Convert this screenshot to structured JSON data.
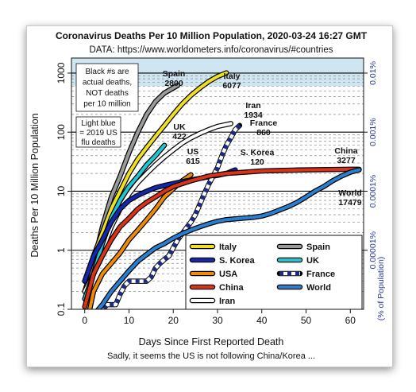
{
  "chart_data": {
    "type": "line",
    "title": "Coronavirus Deaths Per 10 Million Population, 2020-03-24 16:27 GMT",
    "subtitle": "DATA: https://www.worldometers.info/coronavirus/#countries",
    "xlabel": "Days Since First Reported Death",
    "ylabel": "Deaths Per 10 Million Population",
    "right_axis_label": "(% of Population)",
    "caption": "Sadly, it seems the US is not following China/Korea ...",
    "xlim": [
      -3,
      63
    ],
    "ylim": [
      0.1,
      1800
    ],
    "y_scale": "log",
    "x_ticks": [
      "0",
      "10",
      "20",
      "30",
      "40",
      "50",
      "60"
    ],
    "y_ticks": [
      "0.1",
      "1",
      "10",
      "100",
      "1000"
    ],
    "right_ticks": [
      {
        "label": "0.00001%",
        "value": 1
      },
      {
        "label": "0.0001%",
        "value": 10
      },
      {
        "label": "0.001%",
        "value": 100
      },
      {
        "label": "0.01%",
        "value": 1000
      }
    ],
    "flu_band": {
      "y_low": 600,
      "y_high": 1800,
      "color": "#cfe6f2"
    },
    "notes": [
      "Black #s are",
      "actual deaths,",
      "NOT deaths",
      "per 10 million"
    ],
    "flu_note": [
      "Light blue",
      "= 2019 US",
      "flu deaths"
    ],
    "legend_position": "bottom-right",
    "series": [
      {
        "name": "Spain",
        "color": "#9a9a9a",
        "style": "solid",
        "end_label": "Spain",
        "deaths_label": "2800",
        "points": [
          [
            0,
            0.2
          ],
          [
            2,
            0.6
          ],
          [
            4,
            2.5
          ],
          [
            6,
            8
          ],
          [
            8,
            18
          ],
          [
            10,
            45
          ],
          [
            12,
            100
          ],
          [
            14,
            200
          ],
          [
            16,
            330
          ],
          [
            18,
            460
          ],
          [
            21,
            620
          ]
        ]
      },
      {
        "name": "Italy",
        "color": "#f0e020",
        "style": "solid",
        "end_label": "Italy",
        "deaths_label": "6077",
        "points": [
          [
            0,
            0.3
          ],
          [
            2,
            0.8
          ],
          [
            4,
            2
          ],
          [
            6,
            5
          ],
          [
            8,
            10
          ],
          [
            10,
            20
          ],
          [
            12,
            35
          ],
          [
            14,
            55
          ],
          [
            16,
            85
          ],
          [
            18,
            130
          ],
          [
            20,
            200
          ],
          [
            22,
            300
          ],
          [
            24,
            420
          ],
          [
            26,
            560
          ],
          [
            28,
            720
          ],
          [
            30,
            880
          ],
          [
            32,
            1010
          ]
        ]
      },
      {
        "name": "Iran",
        "color": "#ffffff",
        "style": "solid",
        "end_label": "Iran",
        "deaths_label": "1934",
        "points": [
          [
            0,
            0.2
          ],
          [
            2,
            0.4
          ],
          [
            4,
            1
          ],
          [
            6,
            2.5
          ],
          [
            8,
            5
          ],
          [
            10,
            9
          ],
          [
            12,
            14
          ],
          [
            14,
            20
          ],
          [
            16,
            28
          ],
          [
            18,
            38
          ],
          [
            20,
            50
          ],
          [
            22,
            65
          ],
          [
            24,
            80
          ],
          [
            26,
            95
          ],
          [
            28,
            110
          ],
          [
            30,
            125
          ],
          [
            33,
            140
          ]
        ]
      },
      {
        "name": "UK",
        "color": "#1ec8d2",
        "style": "solid",
        "end_label": "UK",
        "deaths_label": "422",
        "points": [
          [
            0,
            0.15
          ],
          [
            2,
            0.4
          ],
          [
            4,
            1.3
          ],
          [
            6,
            3.5
          ],
          [
            8,
            7
          ],
          [
            10,
            12
          ],
          [
            12,
            18
          ],
          [
            14,
            28
          ],
          [
            16,
            40
          ],
          [
            18,
            60
          ]
        ]
      },
      {
        "name": "USA",
        "color": "#ee8c0a",
        "style": "solid",
        "end_label": "US",
        "deaths_label": "615",
        "points": [
          [
            0,
            0.04
          ],
          [
            2,
            0.2
          ],
          [
            4,
            0.4
          ],
          [
            6,
            0.6
          ],
          [
            8,
            0.9
          ],
          [
            10,
            1.5
          ],
          [
            12,
            2.2
          ],
          [
            14,
            3.3
          ],
          [
            16,
            5
          ],
          [
            18,
            8
          ],
          [
            20,
            11
          ],
          [
            22,
            15
          ],
          [
            24,
            19
          ]
        ]
      },
      {
        "name": "S. Korea",
        "color": "#1228b0",
        "style": "solid",
        "end_label": "S. Korea",
        "deaths_label": "120",
        "points": [
          [
            0,
            0.3
          ],
          [
            2,
            0.8
          ],
          [
            4,
            1.5
          ],
          [
            6,
            3
          ],
          [
            8,
            5
          ],
          [
            10,
            7
          ],
          [
            12,
            8.5
          ],
          [
            14,
            10
          ],
          [
            16,
            11.5
          ],
          [
            18,
            12.5
          ],
          [
            20,
            13.5
          ],
          [
            22,
            14.5
          ],
          [
            24,
            15.5
          ],
          [
            26,
            16.5
          ],
          [
            28,
            17.5
          ],
          [
            30,
            18.5
          ],
          [
            32,
            20
          ],
          [
            34,
            23
          ]
        ]
      },
      {
        "name": "France",
        "color": "#1a2a8a",
        "style": "dashed",
        "end_label": "France",
        "deaths_label": "860",
        "points": [
          [
            0,
            0.06
          ],
          [
            3,
            0.08
          ],
          [
            5,
            0.12
          ],
          [
            6,
            0.12
          ],
          [
            7,
            0.12
          ],
          [
            8,
            0.18
          ],
          [
            9,
            0.25
          ],
          [
            10,
            0.3
          ],
          [
            11,
            0.3
          ],
          [
            14,
            0.3
          ],
          [
            15,
            0.35
          ],
          [
            16,
            0.5
          ],
          [
            17,
            0.6
          ],
          [
            18,
            0.7
          ],
          [
            19,
            0.8
          ],
          [
            20,
            1.1
          ],
          [
            21,
            1.5
          ],
          [
            22,
            1.9
          ],
          [
            23,
            2.4
          ],
          [
            24,
            3
          ],
          [
            25,
            4
          ],
          [
            26,
            6
          ],
          [
            27,
            9
          ],
          [
            28,
            13
          ],
          [
            29,
            18
          ],
          [
            30,
            25
          ],
          [
            31,
            40
          ],
          [
            32,
            60
          ],
          [
            33,
            80
          ],
          [
            34,
            110
          ],
          [
            35,
            130
          ]
        ]
      },
      {
        "name": "China",
        "color": "#dc3218",
        "style": "solid",
        "end_label": "China",
        "deaths_label": "3277",
        "points": [
          [
            0,
            0.11
          ],
          [
            2,
            0.4
          ],
          [
            4,
            0.8
          ],
          [
            6,
            1.5
          ],
          [
            8,
            2.5
          ],
          [
            10,
            3.5
          ],
          [
            12,
            5
          ],
          [
            14,
            6.5
          ],
          [
            16,
            8
          ],
          [
            18,
            10
          ],
          [
            20,
            12
          ],
          [
            24,
            15
          ],
          [
            28,
            18
          ],
          [
            32,
            20
          ],
          [
            36,
            21
          ],
          [
            40,
            22
          ],
          [
            45,
            22.5
          ],
          [
            50,
            23
          ],
          [
            55,
            23.3
          ],
          [
            60,
            23.5
          ],
          [
            62,
            23.5
          ]
        ]
      },
      {
        "name": "World",
        "color": "#2a80d0",
        "style": "solid",
        "end_label": "World",
        "deaths_label": "17479",
        "points": [
          [
            0,
            0.04
          ],
          [
            2,
            0.08
          ],
          [
            4,
            0.12
          ],
          [
            6,
            0.2
          ],
          [
            8,
            0.3
          ],
          [
            10,
            0.45
          ],
          [
            12,
            0.65
          ],
          [
            14,
            0.85
          ],
          [
            16,
            1.1
          ],
          [
            18,
            1.3
          ],
          [
            20,
            1.6
          ],
          [
            22,
            1.9
          ],
          [
            24,
            2.2
          ],
          [
            26,
            2.5
          ],
          [
            28,
            2.8
          ],
          [
            30,
            3.1
          ],
          [
            32,
            3.3
          ],
          [
            34,
            3.4
          ],
          [
            36,
            3.5
          ],
          [
            38,
            3.6
          ],
          [
            40,
            3.8
          ],
          [
            42,
            4.2
          ],
          [
            44,
            4.8
          ],
          [
            46,
            5.5
          ],
          [
            48,
            6.5
          ],
          [
            50,
            8
          ],
          [
            52,
            10
          ],
          [
            54,
            12
          ],
          [
            56,
            15
          ],
          [
            58,
            18
          ],
          [
            60,
            21
          ],
          [
            62,
            23
          ]
        ]
      }
    ],
    "legend": [
      {
        "label": "Italy",
        "series": 1
      },
      {
        "label": "Spain",
        "series": 0
      },
      {
        "label": "S. Korea",
        "series": 5
      },
      {
        "label": "UK",
        "series": 3
      },
      {
        "label": "USA",
        "series": 4
      },
      {
        "label": "France",
        "series": 6
      },
      {
        "label": "China",
        "series": 7
      },
      {
        "label": "World",
        "series": 8
      },
      {
        "label": "Iran",
        "series": 2
      }
    ]
  }
}
